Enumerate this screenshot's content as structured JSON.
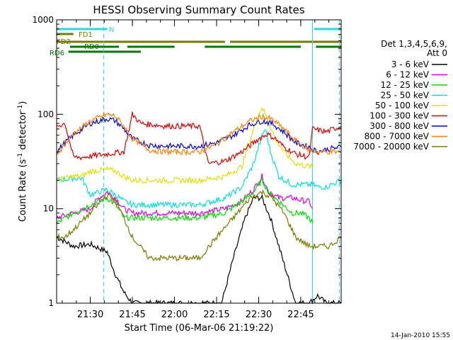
{
  "chart_data": {
    "type": "line",
    "title": "HESSI Observing Summary Count Rates",
    "xlabel": "Start Time (06-Mar-06 21:19:22)",
    "ylabel_parts": [
      "Count Rate (s",
      "-1",
      " detector",
      "-1",
      ")"
    ],
    "y_scale": "log",
    "ylim": [
      1,
      1000
    ],
    "y_ticks": [
      {
        "value": 1,
        "label": "1"
      },
      {
        "value": 10,
        "label": "10"
      },
      {
        "value": 100,
        "label": "100"
      },
      {
        "value": 1000,
        "label": "1000"
      }
    ],
    "xlim_minutes": [
      21.3,
      22.99
    ],
    "x_ticks": [
      {
        "value": 21.5,
        "label": "21:30"
      },
      {
        "value": 21.75,
        "label": "21:45"
      },
      {
        "value": 22.0,
        "label": "22:00"
      },
      {
        "value": 22.25,
        "label": "22:15"
      },
      {
        "value": 22.5,
        "label": "22:30"
      },
      {
        "value": 22.75,
        "label": "22:45"
      }
    ],
    "timestamp": "14-Jan-2010 15:55",
    "legend": {
      "header": [
        "Det 1,3,4,5,6,9,",
        "Att 0"
      ],
      "placement": "right"
    },
    "flags": [
      {
        "label": "N",
        "color": "#22dddd",
        "segments": [
          [
            21.3,
            21.6
          ],
          [
            22.83,
            22.99
          ]
        ]
      },
      {
        "label": "FD1",
        "color": "#7a7a00",
        "segments": [
          [
            21.3,
            21.4
          ]
        ]
      },
      {
        "label": "FD2",
        "color": "#7a7a00",
        "segments": [
          [
            21.3,
            22.3
          ],
          [
            22.33,
            22.99
          ]
        ]
      },
      {
        "label": "RD0",
        "color": "#007a00",
        "segments": [
          [
            21.38,
            21.67
          ],
          [
            21.72,
            22.0
          ],
          [
            22.18,
            22.75
          ],
          [
            22.84,
            22.99
          ]
        ]
      },
      {
        "label": "RD6",
        "color": "#007a00",
        "segments": [
          [
            21.37,
            21.8
          ]
        ]
      }
    ],
    "vlines_solid": [
      21.3,
      22.82
    ],
    "vlines_dashed": [
      21.58,
      22.98
    ],
    "series": [
      {
        "name": "3 - 6 keV",
        "color": "#000000",
        "points": [
          [
            21.3,
            5
          ],
          [
            21.35,
            4.5
          ],
          [
            21.4,
            4
          ],
          [
            21.5,
            4.2
          ],
          [
            21.6,
            3.5
          ],
          [
            21.65,
            2
          ],
          [
            21.7,
            1.3
          ],
          [
            21.75,
            1
          ],
          [
            21.95,
            1
          ],
          [
            22.15,
            1
          ],
          [
            22.28,
            1
          ],
          [
            22.35,
            3
          ],
          [
            22.42,
            8
          ],
          [
            22.47,
            13
          ],
          [
            22.52,
            13
          ],
          [
            22.57,
            8
          ],
          [
            22.62,
            4
          ],
          [
            22.67,
            2
          ],
          [
            22.72,
            1
          ],
          [
            22.8,
            1
          ],
          [
            22.85,
            1.2
          ],
          [
            22.9,
            1
          ],
          [
            22.99,
            1
          ]
        ]
      },
      {
        "name": "6 - 12 keV",
        "color": "#e000e0",
        "points": [
          [
            21.3,
            8
          ],
          [
            21.4,
            9
          ],
          [
            21.5,
            10
          ],
          [
            21.55,
            13
          ],
          [
            21.6,
            15
          ],
          [
            21.65,
            13
          ],
          [
            21.7,
            10
          ],
          [
            21.75,
            9
          ],
          [
            21.95,
            9
          ],
          [
            22.15,
            9
          ],
          [
            22.3,
            10
          ],
          [
            22.4,
            12
          ],
          [
            22.47,
            16
          ],
          [
            22.52,
            22
          ],
          [
            22.56,
            15
          ],
          [
            22.62,
            13
          ],
          [
            22.7,
            13
          ],
          [
            22.78,
            12
          ],
          [
            22.8,
            12
          ],
          [
            22.82,
            10
          ]
        ]
      },
      {
        "name": "12 - 25 keV",
        "color": "#00e000",
        "points": [
          [
            21.3,
            7
          ],
          [
            21.4,
            9
          ],
          [
            21.5,
            11
          ],
          [
            21.6,
            13
          ],
          [
            21.65,
            11
          ],
          [
            21.7,
            8
          ],
          [
            21.75,
            8
          ],
          [
            21.95,
            8
          ],
          [
            22.15,
            8
          ],
          [
            22.3,
            9
          ],
          [
            22.4,
            12
          ],
          [
            22.47,
            15
          ],
          [
            22.52,
            20
          ],
          [
            22.56,
            15
          ],
          [
            22.62,
            12
          ],
          [
            22.7,
            9
          ],
          [
            22.75,
            9
          ],
          [
            22.8,
            8
          ],
          [
            22.82,
            7
          ]
        ]
      },
      {
        "name": "25 - 50 keV",
        "color": "#00e0e0",
        "points": [
          [
            21.3,
            20
          ],
          [
            21.4,
            21
          ],
          [
            21.45,
            21
          ],
          [
            21.5,
            14
          ],
          [
            21.6,
            16
          ],
          [
            21.65,
            14
          ],
          [
            21.7,
            12
          ],
          [
            21.75,
            11
          ],
          [
            21.95,
            11
          ],
          [
            22.15,
            11
          ],
          [
            22.3,
            13
          ],
          [
            22.4,
            17
          ],
          [
            22.47,
            30
          ],
          [
            22.52,
            60
          ],
          [
            22.54,
            70
          ],
          [
            22.57,
            40
          ],
          [
            22.62,
            22
          ],
          [
            22.7,
            18
          ],
          [
            22.78,
            18
          ],
          [
            22.82,
            18
          ],
          [
            22.85,
            17
          ],
          [
            22.9,
            17
          ],
          [
            22.99,
            20
          ]
        ]
      },
      {
        "name": "50 - 100 keV",
        "color": "#e0e000",
        "points": [
          [
            21.3,
            20
          ],
          [
            21.4,
            22
          ],
          [
            21.45,
            22
          ],
          [
            21.5,
            25
          ],
          [
            21.6,
            26
          ],
          [
            21.65,
            25
          ],
          [
            21.7,
            22
          ],
          [
            21.75,
            20
          ],
          [
            21.95,
            20
          ],
          [
            22.15,
            20
          ],
          [
            22.3,
            22
          ],
          [
            22.4,
            28
          ],
          [
            22.47,
            70
          ],
          [
            22.52,
            120
          ],
          [
            22.55,
            90
          ],
          [
            22.6,
            55
          ],
          [
            22.65,
            40
          ],
          [
            22.72,
            30
          ],
          [
            22.8,
            28
          ],
          [
            22.82,
            28
          ]
        ]
      },
      {
        "name": "100 - 300 keV",
        "color": "#e00000",
        "points": [
          [
            21.3,
            75
          ],
          [
            21.35,
            80
          ],
          [
            21.4,
            35
          ],
          [
            21.45,
            35
          ],
          [
            21.5,
            36
          ],
          [
            21.6,
            38
          ],
          [
            21.7,
            40
          ],
          [
            21.75,
            100
          ],
          [
            21.8,
            80
          ],
          [
            21.95,
            75
          ],
          [
            22.15,
            75
          ],
          [
            22.2,
            30
          ],
          [
            22.3,
            32
          ],
          [
            22.4,
            40
          ],
          [
            22.5,
            55
          ],
          [
            22.55,
            62
          ],
          [
            22.6,
            55
          ],
          [
            22.65,
            45
          ],
          [
            22.72,
            38
          ],
          [
            22.8,
            35
          ],
          [
            22.82,
            70
          ],
          [
            22.9,
            65
          ],
          [
            22.99,
            75
          ]
        ]
      },
      {
        "name": "300 - 800 keV",
        "color": "#0000e0",
        "points": [
          [
            21.3,
            40
          ],
          [
            21.35,
            50
          ],
          [
            21.4,
            60
          ],
          [
            21.5,
            80
          ],
          [
            21.6,
            90
          ],
          [
            21.65,
            85
          ],
          [
            21.7,
            70
          ],
          [
            21.75,
            55
          ],
          [
            21.85,
            47
          ],
          [
            21.95,
            46
          ],
          [
            22.15,
            46
          ],
          [
            22.25,
            50
          ],
          [
            22.35,
            60
          ],
          [
            22.45,
            78
          ],
          [
            22.52,
            85
          ],
          [
            22.58,
            80
          ],
          [
            22.65,
            65
          ],
          [
            22.72,
            50
          ],
          [
            22.8,
            45
          ],
          [
            22.85,
            40
          ],
          [
            22.92,
            43
          ],
          [
            22.99,
            45
          ]
        ]
      },
      {
        "name": "800 - 7000 keV",
        "color": "#ff7f00",
        "points": [
          [
            21.3,
            38
          ],
          [
            21.35,
            48
          ],
          [
            21.4,
            62
          ],
          [
            21.5,
            85
          ],
          [
            21.6,
            100
          ],
          [
            21.65,
            95
          ],
          [
            21.7,
            75
          ],
          [
            21.75,
            55
          ],
          [
            21.85,
            42
          ],
          [
            21.95,
            40
          ],
          [
            22.15,
            40
          ],
          [
            22.25,
            48
          ],
          [
            22.35,
            65
          ],
          [
            22.45,
            85
          ],
          [
            22.52,
            95
          ],
          [
            22.58,
            88
          ],
          [
            22.65,
            70
          ],
          [
            22.72,
            52
          ],
          [
            22.8,
            42
          ],
          [
            22.85,
            40
          ],
          [
            22.92,
            40
          ],
          [
            22.99,
            40
          ]
        ]
      },
      {
        "name": "7000 - 20000 keV",
        "color": "#7a7a00",
        "points": [
          [
            21.3,
            5
          ],
          [
            21.35,
            5
          ],
          [
            21.4,
            6
          ],
          [
            21.5,
            9
          ],
          [
            21.6,
            14
          ],
          [
            21.65,
            12
          ],
          [
            21.7,
            8
          ],
          [
            21.75,
            5
          ],
          [
            21.85,
            3
          ],
          [
            21.95,
            3
          ],
          [
            22.15,
            3
          ],
          [
            22.25,
            5
          ],
          [
            22.35,
            8
          ],
          [
            22.45,
            13
          ],
          [
            22.52,
            15
          ],
          [
            22.58,
            13
          ],
          [
            22.65,
            9
          ],
          [
            22.72,
            5
          ],
          [
            22.8,
            4
          ],
          [
            22.85,
            4
          ],
          [
            22.92,
            4
          ],
          [
            22.99,
            5
          ]
        ]
      }
    ]
  }
}
